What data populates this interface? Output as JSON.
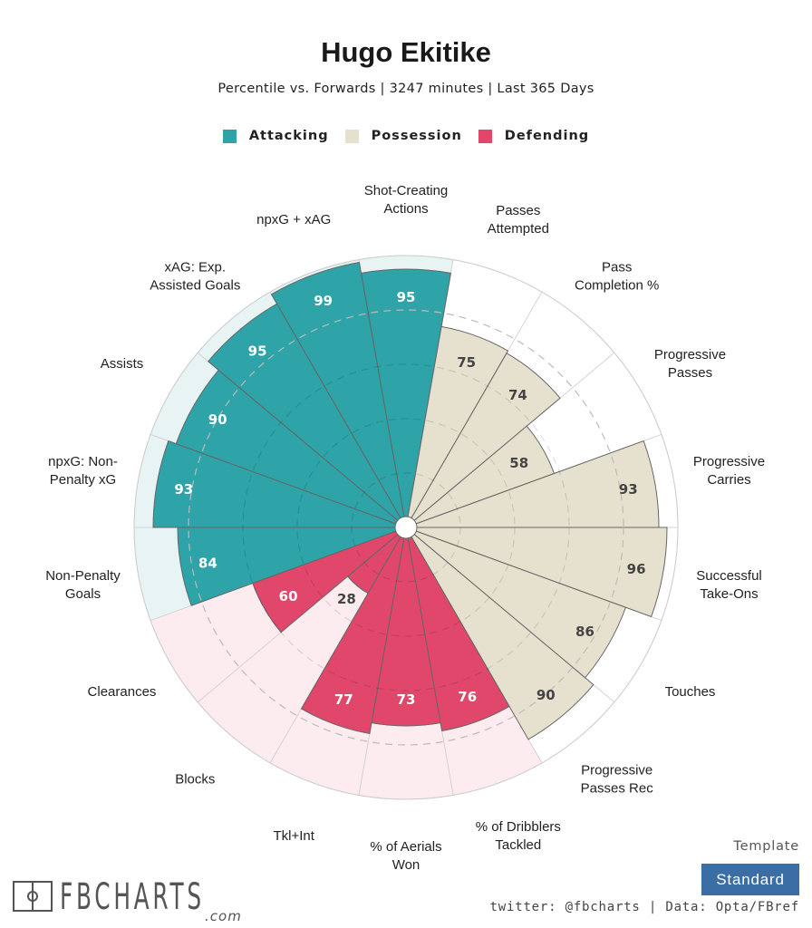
{
  "header": {
    "title": "Hugo Ekitike",
    "subtitle": "Percentile vs. Forwards | 3247 minutes | Last 365 Days"
  },
  "legend": [
    {
      "label": "Attacking",
      "color": "#2ea3a8"
    },
    {
      "label": "Possession",
      "color": "#e6e1cf"
    },
    {
      "label": "Defending",
      "color": "#e0476a"
    }
  ],
  "footer": {
    "logo_text": "FBCHARTS",
    "logo_suffix": ".com",
    "template_label": "Template",
    "template_value": "Standard",
    "credit": "twitter: @fbcharts | Data: Opta/FBref"
  },
  "chart_data": {
    "type": "pie",
    "subtype": "polar-bar (pizza)",
    "title": "Hugo Ekitike",
    "subtitle": "Percentile vs. Forwards | 3247 minutes | Last 365 Days",
    "value_range": [
      0,
      100
    ],
    "gridlines": [
      20,
      40,
      60,
      80
    ],
    "start": "top, clockwise",
    "groups": {
      "Attacking": {
        "bar_color": "#2ea3a8",
        "bg_color": "#e8f4f4",
        "label_color": "#ffffff"
      },
      "Possession": {
        "bar_color": "#e6e1cf",
        "bg_color": "#ffffff",
        "label_color": "#444444"
      },
      "Defending": {
        "bar_color": "#e0476a",
        "bg_color": "#fcebef",
        "label_color": "#ffffff"
      }
    },
    "categories": [
      {
        "label": [
          "Shot-Creating",
          "Actions"
        ],
        "value": 95,
        "group": "Attacking"
      },
      {
        "label": [
          "Passes",
          "Attempted"
        ],
        "value": 75,
        "group": "Possession"
      },
      {
        "label": [
          "Pass",
          "Completion %"
        ],
        "value": 74,
        "group": "Possession"
      },
      {
        "label": [
          "Progressive",
          "Passes"
        ],
        "value": 58,
        "group": "Possession"
      },
      {
        "label": [
          "Progressive",
          "Carries"
        ],
        "value": 93,
        "group": "Possession"
      },
      {
        "label": [
          "Successful",
          "Take-Ons"
        ],
        "value": 96,
        "group": "Possession"
      },
      {
        "label": [
          "Touches"
        ],
        "value": 86,
        "group": "Possession"
      },
      {
        "label": [
          "Progressive",
          "Passes Rec"
        ],
        "value": 90,
        "group": "Possession"
      },
      {
        "label": [
          "% of Dribblers",
          "Tackled"
        ],
        "value": 76,
        "group": "Defending"
      },
      {
        "label": [
          "% of Aerials",
          "Won"
        ],
        "value": 73,
        "group": "Defending"
      },
      {
        "label": [
          "Tkl+Int"
        ],
        "value": 77,
        "group": "Defending"
      },
      {
        "label": [
          "Blocks"
        ],
        "value": 28,
        "group": "Defending"
      },
      {
        "label": [
          "Clearances"
        ],
        "value": 60,
        "group": "Defending"
      },
      {
        "label": [
          "Non-Penalty",
          "Goals"
        ],
        "value": 84,
        "group": "Attacking"
      },
      {
        "label": [
          "npxG: Non-",
          "Penalty xG"
        ],
        "value": 93,
        "group": "Attacking"
      },
      {
        "label": [
          "Assists"
        ],
        "value": 90,
        "group": "Attacking"
      },
      {
        "label": [
          "xAG: Exp.",
          "Assisted Goals"
        ],
        "value": 95,
        "group": "Attacking"
      },
      {
        "label": [
          "npxG + xAG"
        ],
        "value": 99,
        "group": "Attacking"
      }
    ]
  }
}
